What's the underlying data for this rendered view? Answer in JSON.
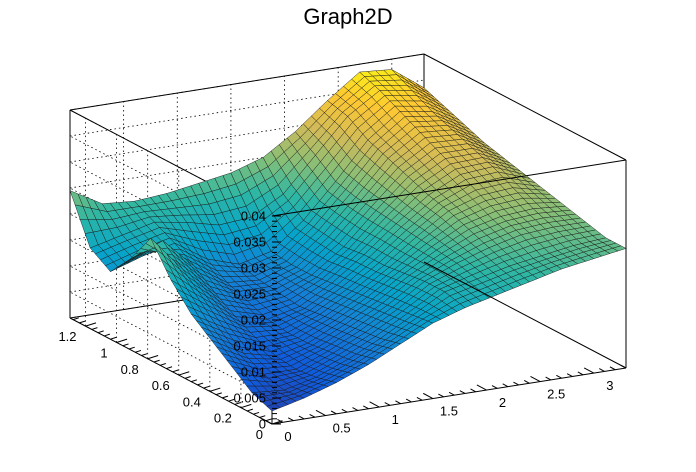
{
  "chart_data": {
    "type": "surface3d",
    "title": "Graph2D",
    "xlabel": "",
    "ylabel": "",
    "zlabel": "",
    "x_range": [
      0,
      3.3
    ],
    "y_range": [
      0,
      1.3
    ],
    "z_range": [
      0,
      0.04
    ],
    "x_ticks": [
      "0",
      "0.5",
      "1",
      "1.5",
      "2",
      "2.5",
      "3"
    ],
    "y_ticks": [
      "0",
      "0.2",
      "0.4",
      "0.6",
      "0.8",
      "1",
      "1.2"
    ],
    "z_ticks": [
      "0",
      "0.005",
      "0.01",
      "0.015",
      "0.02",
      "0.025",
      "0.03",
      "0.035",
      "0.04"
    ],
    "grid": true,
    "colormap": [
      "#352a87",
      "#0f5cdd",
      "#1481d6",
      "#06a4ca",
      "#2eb7a4",
      "#87bf77",
      "#d1bb59",
      "#fec832",
      "#f9fb0e"
    ],
    "surface_x": [
      0,
      0.3,
      0.6,
      0.9,
      1.2,
      1.5,
      1.8,
      2.1,
      2.4,
      2.7,
      3.0,
      3.3
    ],
    "surface_y": [
      0,
      0.13,
      0.26,
      0.39,
      0.52,
      0.65,
      0.78,
      0.91,
      1.04,
      1.17,
      1.3
    ],
    "surface_z": [
      [
        0.0025,
        0.004,
        0.006,
        0.0085,
        0.0115,
        0.0145,
        0.0165,
        0.018,
        0.0195,
        0.021,
        0.022,
        0.023
      ],
      [
        0.004,
        0.0035,
        0.005,
        0.0075,
        0.0105,
        0.014,
        0.0175,
        0.019,
        0.0205,
        0.0215,
        0.0225,
        0.023
      ],
      [
        0.007,
        0.0045,
        0.0045,
        0.007,
        0.01,
        0.0135,
        0.0175,
        0.02,
        0.022,
        0.0235,
        0.024,
        0.024
      ],
      [
        0.01,
        0.0065,
        0.005,
        0.0065,
        0.0095,
        0.013,
        0.017,
        0.0205,
        0.0235,
        0.025,
        0.0255,
        0.025
      ],
      [
        0.013,
        0.0095,
        0.0065,
        0.0065,
        0.009,
        0.0125,
        0.0165,
        0.021,
        0.025,
        0.027,
        0.0275,
        0.026
      ],
      [
        0.0175,
        0.013,
        0.0085,
        0.007,
        0.0085,
        0.012,
        0.0165,
        0.0215,
        0.026,
        0.029,
        0.0295,
        0.027
      ],
      [
        0.0235,
        0.0165,
        0.011,
        0.0085,
        0.009,
        0.0115,
        0.016,
        0.022,
        0.0275,
        0.031,
        0.031,
        0.028
      ],
      [
        0.0175,
        0.02,
        0.014,
        0.01,
        0.0095,
        0.0115,
        0.0165,
        0.0225,
        0.029,
        0.033,
        0.0325,
        0.029
      ],
      [
        0.013,
        0.015,
        0.0165,
        0.0125,
        0.0105,
        0.012,
        0.017,
        0.0235,
        0.0305,
        0.035,
        0.034,
        0.0305
      ],
      [
        0.0155,
        0.017,
        0.0185,
        0.0175,
        0.016,
        0.0165,
        0.02,
        0.0265,
        0.033,
        0.037,
        0.036,
        0.032
      ],
      [
        0.0245,
        0.021,
        0.0205,
        0.021,
        0.022,
        0.023,
        0.025,
        0.029,
        0.034,
        0.0385,
        0.038,
        0.0335
      ]
    ]
  }
}
